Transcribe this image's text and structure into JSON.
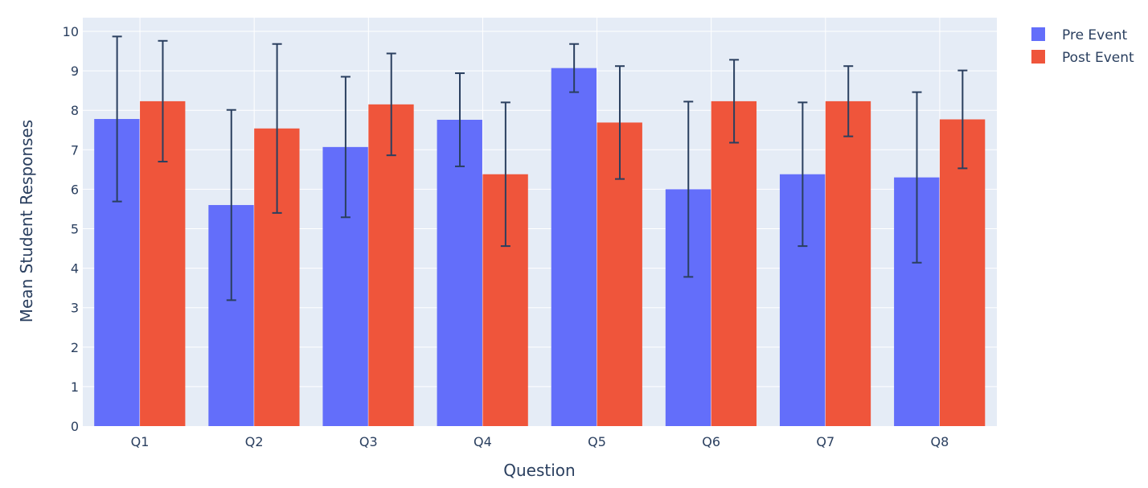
{
  "chart_data": {
    "type": "bar",
    "title": "",
    "xlabel": "Question",
    "ylabel": "Mean Student Responses",
    "ylim": [
      0,
      10.3
    ],
    "yticks": [
      0,
      1,
      2,
      3,
      4,
      5,
      6,
      7,
      8,
      9,
      10
    ],
    "grid": true,
    "legend_position": "top-right",
    "categories": [
      "Q1",
      "Q2",
      "Q3",
      "Q4",
      "Q5",
      "Q6",
      "Q7",
      "Q8"
    ],
    "series": [
      {
        "name": "Pre Event",
        "color": "#636efa",
        "values": [
          7.78,
          5.6,
          7.07,
          7.76,
          9.07,
          6.0,
          6.38,
          6.3
        ],
        "error": [
          2.09,
          2.41,
          1.78,
          1.18,
          0.61,
          2.22,
          1.82,
          2.16
        ]
      },
      {
        "name": "Post Event",
        "color": "#EF553B",
        "values": [
          8.23,
          7.54,
          8.15,
          6.38,
          7.69,
          8.23,
          8.23,
          7.77
        ],
        "error": [
          1.53,
          2.14,
          1.29,
          1.82,
          1.43,
          1.05,
          0.89,
          1.24
        ]
      }
    ],
    "error_bar_color": "#2a3f5f",
    "plot_background": "#E5ECF6"
  }
}
